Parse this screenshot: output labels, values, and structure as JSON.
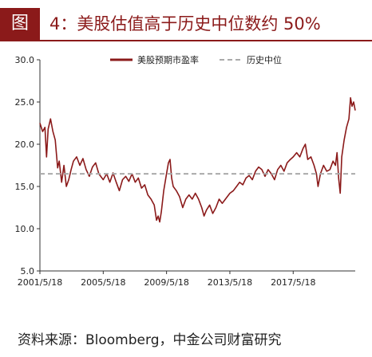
{
  "figure": {
    "label": "图",
    "title": "4：美股估值高于历史中位数约 50%"
  },
  "source_note": "资料来源：Bloomberg，中金公司财富研究",
  "colors": {
    "accent": "#8b1a1a",
    "median": "#aaaaaa",
    "axis": "#333333"
  },
  "chart_data": {
    "type": "line",
    "title": "",
    "xlabel": "",
    "ylabel": "",
    "ylim": [
      5,
      30
    ],
    "y_ticks": [
      "5.0",
      "10.0",
      "15.0",
      "20.0",
      "25.0",
      "30.0"
    ],
    "x_tick_labels": [
      "2001/5/18",
      "2005/5/18",
      "2009/5/18",
      "2013/5/18",
      "2017/5/18"
    ],
    "x_tick_values": [
      2001.38,
      2005.38,
      2009.38,
      2013.38,
      2017.38
    ],
    "xlim": [
      2001.38,
      2021.3
    ],
    "grid": false,
    "legend_position": "top",
    "series": [
      {
        "name": "美股预期市盈率",
        "color": "#8b1a1a",
        "style": "solid",
        "x": [
          2001.38,
          2001.55,
          2001.7,
          2001.8,
          2001.9,
          2002.05,
          2002.2,
          2002.35,
          2002.5,
          2002.6,
          2002.75,
          2002.9,
          2003.05,
          2003.2,
          2003.35,
          2003.5,
          2003.7,
          2003.9,
          2004.1,
          2004.3,
          2004.5,
          2004.7,
          2004.9,
          2005.1,
          2005.38,
          2005.6,
          2005.8,
          2006.0,
          2006.2,
          2006.4,
          2006.6,
          2006.8,
          2007.0,
          2007.2,
          2007.4,
          2007.6,
          2007.8,
          2008.0,
          2008.2,
          2008.4,
          2008.6,
          2008.75,
          2008.85,
          2008.95,
          2009.05,
          2009.2,
          2009.38,
          2009.5,
          2009.6,
          2009.7,
          2009.8,
          2010.0,
          2010.2,
          2010.4,
          2010.6,
          2010.8,
          2011.0,
          2011.2,
          2011.4,
          2011.6,
          2011.75,
          2011.9,
          2012.1,
          2012.3,
          2012.5,
          2012.7,
          2012.9,
          2013.1,
          2013.38,
          2013.6,
          2013.8,
          2014.0,
          2014.2,
          2014.4,
          2014.6,
          2014.8,
          2015.0,
          2015.2,
          2015.4,
          2015.6,
          2015.8,
          2016.0,
          2016.2,
          2016.4,
          2016.6,
          2016.8,
          2017.0,
          2017.2,
          2017.38,
          2017.6,
          2017.8,
          2018.0,
          2018.15,
          2018.3,
          2018.5,
          2018.7,
          2018.85,
          2018.95,
          2019.1,
          2019.3,
          2019.5,
          2019.7,
          2019.9,
          2020.05,
          2020.15,
          2020.25,
          2020.35,
          2020.45,
          2020.6,
          2020.75,
          2020.9,
          2021.0,
          2021.1,
          2021.2,
          2021.3
        ],
        "values": [
          22.5,
          21.5,
          22.0,
          18.5,
          21.8,
          23.0,
          21.5,
          20.5,
          17.2,
          18.0,
          15.5,
          17.5,
          15.0,
          15.8,
          17.0,
          18.0,
          18.5,
          17.5,
          18.3,
          17.0,
          16.2,
          17.3,
          17.8,
          16.5,
          15.8,
          16.5,
          15.5,
          16.6,
          15.5,
          14.5,
          15.8,
          16.2,
          15.6,
          16.5,
          15.5,
          16.0,
          14.8,
          15.2,
          14.0,
          13.5,
          12.8,
          11.0,
          11.5,
          10.8,
          12.0,
          14.5,
          16.5,
          17.8,
          18.2,
          16.0,
          15.0,
          14.5,
          13.8,
          12.5,
          13.5,
          14.0,
          13.5,
          14.2,
          13.5,
          12.5,
          11.5,
          12.2,
          12.8,
          11.8,
          12.5,
          13.5,
          13.0,
          13.5,
          14.2,
          14.5,
          15.0,
          15.5,
          15.2,
          16.0,
          16.3,
          15.8,
          16.8,
          17.3,
          17.0,
          16.2,
          17.0,
          16.5,
          15.8,
          17.0,
          17.5,
          16.8,
          17.8,
          18.2,
          18.5,
          19.0,
          18.5,
          19.5,
          20.0,
          18.2,
          18.5,
          17.5,
          16.5,
          15.0,
          16.5,
          17.5,
          16.8,
          17.0,
          18.0,
          17.5,
          19.0,
          16.0,
          14.2,
          18.5,
          20.5,
          22.0,
          23.0,
          25.5,
          24.5,
          25.0,
          24.0
        ]
      },
      {
        "name": "历史中位",
        "color": "#aaaaaa",
        "style": "dashed",
        "x": [
          2001.38,
          2021.3
        ],
        "values": [
          16.5,
          16.5
        ]
      }
    ]
  }
}
